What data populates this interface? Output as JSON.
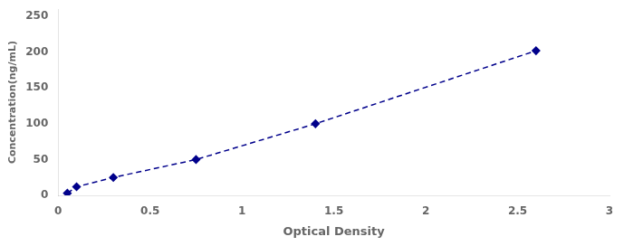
{
  "chart_data": {
    "type": "line",
    "x": [
      0.05,
      0.1,
      0.3,
      0.75,
      1.4,
      2.6
    ],
    "values": [
      3,
      12,
      25,
      50,
      100,
      202
    ],
    "color": "#00008B",
    "marker": "diamond",
    "line_style": "dashed",
    "xlabel": "Optical Density",
    "ylabel": "Concentration(ng/mL)",
    "xlim": [
      0,
      3
    ],
    "ylim": [
      0,
      260
    ],
    "xticks": [
      0,
      0.5,
      1,
      1.5,
      2,
      2.5,
      3
    ],
    "yticks": [
      0,
      50,
      100,
      150,
      200,
      250
    ],
    "grid": false
  }
}
